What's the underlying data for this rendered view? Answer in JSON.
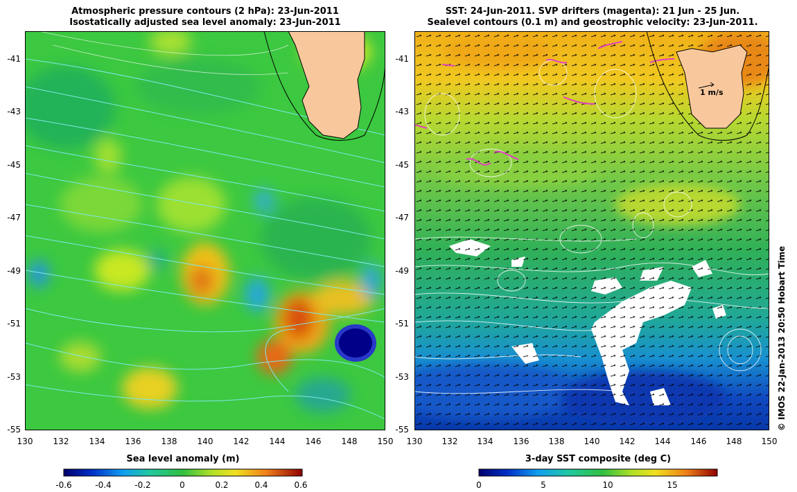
{
  "left_panel": {
    "title_line1": "Atmospheric pressure contours (2 hPa): 23-Jun-2011",
    "title_line2": "Isostatically adjusted sea level anomaly: 23-Jun-2011",
    "y_ticks": [
      "-41",
      "-43",
      "-45",
      "-47",
      "-49",
      "-51",
      "-53",
      "-55"
    ],
    "x_ticks": [
      "130",
      "132",
      "134",
      "136",
      "138",
      "140",
      "142",
      "144",
      "146",
      "148",
      "150"
    ],
    "colorbar_label": "Sea level anomaly (m)",
    "colorbar_ticks": [
      "-0.6",
      "-0.4",
      "-0.2",
      "0",
      "0.2",
      "0.4",
      "0.6"
    ],
    "colorbar_range": [
      -0.6,
      0.6
    ]
  },
  "right_panel": {
    "title_line1": "SST: 24-Jun-2011. SVP drifters (magenta): 21 Jun - 25 Jun.",
    "title_line2": "Sealevel contours (0.1 m) and geostrophic velocity: 23-Jun-2011.",
    "y_ticks": [
      "-41",
      "-43",
      "-45",
      "-47",
      "-49",
      "-51",
      "-53",
      "-55"
    ],
    "x_ticks": [
      "130",
      "132",
      "134",
      "136",
      "138",
      "140",
      "142",
      "144",
      "146",
      "148",
      "150"
    ],
    "scale_arrow_label": "1 m/s",
    "colorbar_label": "3-day SST composite (deg C)",
    "colorbar_ticks": [
      "0",
      "5",
      "10",
      "15"
    ],
    "colorbar_range": [
      0,
      18.5
    ]
  },
  "map_extent": {
    "lon": [
      130,
      150
    ],
    "lat": [
      -55,
      -40
    ]
  },
  "copyright": "© IMOS 22-Jan-2013 20:50 Hobart Time",
  "colors": {
    "land": "#f8c89c",
    "pressure_contour": "#7fe8e8",
    "drifter": "#e040c0",
    "cloud": "#ffffff"
  }
}
